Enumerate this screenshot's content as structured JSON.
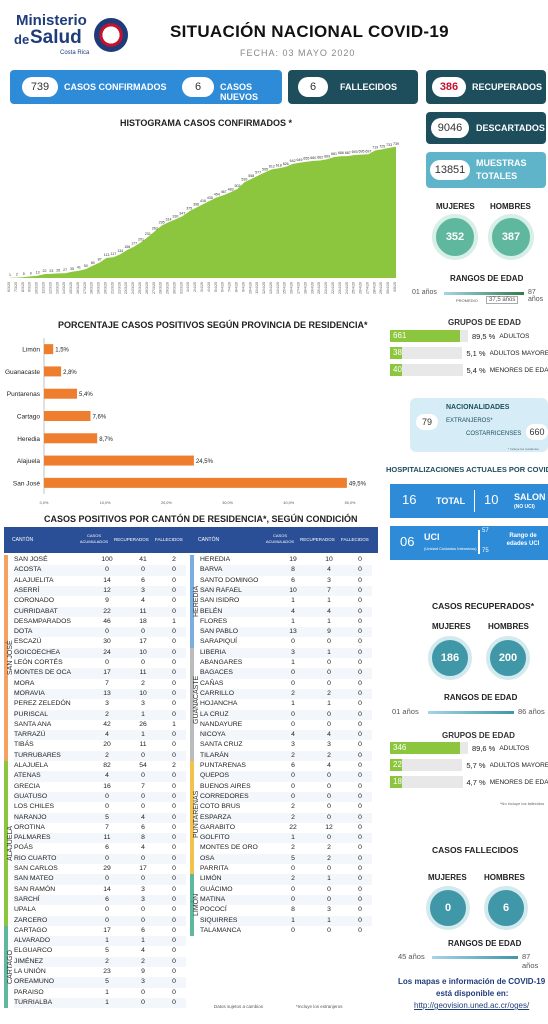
{
  "header": {
    "org_line1": "Ministerio",
    "org_line2_a": "de",
    "org_line2_b": "Salud",
    "org_country": "Costa Rica",
    "title": "SITUACIÓN NACIONAL COVID-19",
    "date": "FECHA: 03 MAYO 2020"
  },
  "kpis": {
    "confirmados": {
      "value": "739",
      "label": "CASOS CONFIRMADOS"
    },
    "nuevos": {
      "value": "6",
      "label": "CASOS NUEVOS"
    },
    "fallecidos": {
      "value": "6",
      "label": "FALLECIDOS"
    },
    "recuperados": {
      "value": "386",
      "label": "RECUPERADOS"
    },
    "descartados": {
      "value": "9046",
      "label": "DESCARTADOS"
    },
    "muestras": {
      "value": "13851",
      "label1": "MUESTRAS",
      "label2": "TOTALES"
    }
  },
  "gender_confirmed": {
    "mujeres_label": "MUJERES",
    "hombres_label": "HOMBRES",
    "mujeres": "352",
    "hombres": "387"
  },
  "age_range_confirmed": {
    "title": "RANGOS DE EDAD",
    "min": "01 años",
    "max": "87 años",
    "promedio_label": "PROMEDIO",
    "promedio": "37,5 años"
  },
  "age_groups_confirmed": {
    "title": "GRUPOS DE EDAD",
    "rows": [
      {
        "n": "661",
        "pct": "89,5 %",
        "label": "ADULTOS",
        "frac": 0.895
      },
      {
        "n": "38",
        "pct": "5,1 %",
        "label": "ADULTOS MAYORES",
        "frac": 0.051
      },
      {
        "n": "40",
        "pct": "5,4 %",
        "label": "MENORES DE EDAD",
        "frac": 0.054
      }
    ]
  },
  "nationality": {
    "title": "NACIONALIDADES",
    "extranjeros_label": "EXTRANJEROS*",
    "extranjeros": "79",
    "costarricenses_label": "COSTARRICENSES",
    "costarricenses": "660",
    "note": "* Incluye los residentes"
  },
  "hosp": {
    "title": "HOSPITALIZACIONES ACTUALES POR COVID-19",
    "total": "16",
    "total_label": "TOTAL",
    "salon": "10",
    "salon_label": "SALON",
    "salon_sub": "(NO UCI)",
    "uci": "06",
    "uci_label": "UCI",
    "uci_sub": "(Unidad Cuidados Intensivos)",
    "uci_range_label": "Rango de edades UCI",
    "uci_max": "57",
    "uci_min": "75"
  },
  "recovered": {
    "title": "CASOS RECUPERADOS*",
    "mujeres_label": "MUJERES",
    "hombres_label": "HOMBRES",
    "mujeres": "186",
    "hombres": "200",
    "range_title": "RANGOS DE EDAD",
    "min": "01 años",
    "max": "86 años",
    "groups_title": "GRUPOS DE EDAD",
    "rows": [
      {
        "n": "346",
        "pct": "89,6 %",
        "label": "ADULTOS",
        "frac": 0.896
      },
      {
        "n": "22",
        "pct": "5,7 %",
        "label": "ADULTOS MAYORES",
        "frac": 0.057
      },
      {
        "n": "18",
        "pct": "4,7 %",
        "label": "MENORES DE EDAD",
        "frac": 0.047
      }
    ],
    "note": "*No incluye los fallecidos"
  },
  "deaths": {
    "title": "CASOS FALLECIDOS",
    "mujeres_label": "MUJERES",
    "hombres_label": "HOMBRES",
    "mujeres": "0",
    "hombres": "6",
    "range_title": "RANGOS DE EDAD",
    "min": "45 años",
    "max": "87 años"
  },
  "footer": {
    "link_text1": "Los mapas e información de COVID-19",
    "link_text2": "está disponible en:",
    "url": "http://geovision.uned.ac.cr/oges/",
    "note1": "Datos sujetos a cambios",
    "note2": "*Incluye los extranjeros"
  },
  "canton_table": {
    "title": "CASOS POSITIVOS POR CANTÓN DE RESIDENCIA*, SEGÚN CONDICIÓN",
    "headers": [
      "CANTÓN",
      "CASOS ACUMULADOS",
      "RECUPERADOS",
      "FALLECIDOS"
    ],
    "provinces_left": [
      "SAN JOSÉ",
      "ALAJUELA",
      "CARTAGO"
    ],
    "provinces_right": [
      "HEREDIA",
      "GUANACASTE",
      "PUNTARENAS",
      "LIMÓN"
    ],
    "left": [
      [
        "SAN JOSÉ",
        "100",
        "41",
        "2"
      ],
      [
        "ACOSTA",
        "0",
        "0",
        "0"
      ],
      [
        "ALAJUELITA",
        "14",
        "6",
        "0"
      ],
      [
        "ASERRÍ",
        "12",
        "3",
        "0"
      ],
      [
        "CORONADO",
        "9",
        "4",
        "0"
      ],
      [
        "CURRIDABAT",
        "22",
        "11",
        "0"
      ],
      [
        "DESAMPARADOS",
        "46",
        "18",
        "1"
      ],
      [
        "DOTA",
        "0",
        "0",
        "0"
      ],
      [
        "ESCAZÚ",
        "30",
        "17",
        "0"
      ],
      [
        "GOICOECHEA",
        "24",
        "10",
        "0"
      ],
      [
        "LEÓN CORTÉS",
        "0",
        "0",
        "0"
      ],
      [
        "MONTES DE OCA",
        "17",
        "11",
        "0"
      ],
      [
        "MORA",
        "7",
        "2",
        "0"
      ],
      [
        "MORAVIA",
        "13",
        "10",
        "0"
      ],
      [
        "PEREZ ZELEDÓN",
        "3",
        "3",
        "0"
      ],
      [
        "PURISCAL",
        "2",
        "1",
        "0"
      ],
      [
        "SANTA ANA",
        "42",
        "26",
        "1"
      ],
      [
        "TARRAZÚ",
        "4",
        "1",
        "0"
      ],
      [
        "TIBÁS",
        "20",
        "11",
        "0"
      ],
      [
        "TURRUBARES",
        "2",
        "0",
        "0"
      ],
      [
        "ALAJUELA",
        "82",
        "54",
        "2"
      ],
      [
        "ATENAS",
        "4",
        "0",
        "0"
      ],
      [
        "GRECIA",
        "16",
        "7",
        "0"
      ],
      [
        "GUATUSO",
        "0",
        "0",
        "0"
      ],
      [
        "LOS CHILES",
        "0",
        "0",
        "0"
      ],
      [
        "NARANJO",
        "5",
        "4",
        "0"
      ],
      [
        "OROTINA",
        "7",
        "6",
        "0"
      ],
      [
        "PALMARES",
        "11",
        "8",
        "0"
      ],
      [
        "POÁS",
        "6",
        "4",
        "0"
      ],
      [
        "RIO CUARTO",
        "0",
        "0",
        "0"
      ],
      [
        "SAN CARLOS",
        "29",
        "17",
        "0"
      ],
      [
        "SAN MATEO",
        "0",
        "0",
        "0"
      ],
      [
        "SAN RAMÓN",
        "14",
        "3",
        "0"
      ],
      [
        "SARCHÍ",
        "6",
        "3",
        "0"
      ],
      [
        "UPALA",
        "0",
        "0",
        "0"
      ],
      [
        "ZARCERO",
        "0",
        "0",
        "0"
      ],
      [
        "CARTAGO",
        "17",
        "6",
        "0"
      ],
      [
        "ALVARADO",
        "1",
        "1",
        "0"
      ],
      [
        "ELGUARCO",
        "5",
        "4",
        "0"
      ],
      [
        "JIMÉNEZ",
        "2",
        "2",
        "0"
      ],
      [
        "LA UNIÓN",
        "23",
        "9",
        "0"
      ],
      [
        "OREAMUNO",
        "5",
        "3",
        "0"
      ],
      [
        "PARAISO",
        "1",
        "0",
        "0"
      ],
      [
        "TURRIALBA",
        "1",
        "0",
        "0"
      ]
    ],
    "right": [
      [
        "HEREDIA",
        "19",
        "10",
        "0"
      ],
      [
        "BARVA",
        "8",
        "4",
        "0"
      ],
      [
        "SANTO DOMINGO",
        "6",
        "3",
        "0"
      ],
      [
        "SAN RAFAEL",
        "10",
        "7",
        "0"
      ],
      [
        "SAN ISIDRO",
        "1",
        "1",
        "0"
      ],
      [
        "BELÉN",
        "4",
        "4",
        "0"
      ],
      [
        "FLORES",
        "1",
        "1",
        "0"
      ],
      [
        "SAN PABLO",
        "13",
        "9",
        "0"
      ],
      [
        "SARAPIQUÍ",
        "0",
        "0",
        "0"
      ],
      [
        "LIBERIA",
        "3",
        "1",
        "0"
      ],
      [
        "ABANGARES",
        "1",
        "0",
        "0"
      ],
      [
        "BAGACES",
        "0",
        "0",
        "0"
      ],
      [
        "CAÑAS",
        "0",
        "0",
        "0"
      ],
      [
        "CARRILLO",
        "2",
        "2",
        "0"
      ],
      [
        "HOJANCHA",
        "1",
        "1",
        "0"
      ],
      [
        "LA CRUZ",
        "0",
        "0",
        "0"
      ],
      [
        "NANDAYURE",
        "0",
        "0",
        "0"
      ],
      [
        "NICOYA",
        "4",
        "4",
        "0"
      ],
      [
        "SANTA CRUZ",
        "3",
        "3",
        "0"
      ],
      [
        "TILARÁN",
        "2",
        "2",
        "0"
      ],
      [
        "PUNTARENAS",
        "6",
        "4",
        "0"
      ],
      [
        "QUEPOS",
        "0",
        "0",
        "0"
      ],
      [
        "BUENOS AIRES",
        "0",
        "0",
        "0"
      ],
      [
        "CORREDORES",
        "0",
        "0",
        "0"
      ],
      [
        "COTO BRUS",
        "2",
        "0",
        "0"
      ],
      [
        "ESPARZA",
        "2",
        "0",
        "0"
      ],
      [
        "GARABITO",
        "22",
        "12",
        "0"
      ],
      [
        "GOLFITO",
        "1",
        "0",
        "0"
      ],
      [
        "MONTES DE ORO",
        "2",
        "2",
        "0"
      ],
      [
        "OSA",
        "5",
        "2",
        "0"
      ],
      [
        "PARRITA",
        "0",
        "0",
        "0"
      ],
      [
        "LIMÓN",
        "2",
        "1",
        "0"
      ],
      [
        "GUÁCIMO",
        "0",
        "0",
        "0"
      ],
      [
        "MATINA",
        "0",
        "0",
        "0"
      ],
      [
        "POCOCÍ",
        "8",
        "3",
        "0"
      ],
      [
        "SIQUIRRES",
        "1",
        "1",
        "0"
      ],
      [
        "TALAMANCA",
        "0",
        "0",
        "0"
      ]
    ]
  },
  "chart_data": [
    {
      "type": "area",
      "title": "HISTOGRAMA CASOS CONFIRMADOS *",
      "y_values": [
        1,
        2,
        5,
        9,
        13,
        22,
        23,
        26,
        27,
        35,
        41,
        50,
        69,
        87,
        113,
        117,
        134,
        158,
        177,
        201,
        231,
        263,
        295,
        314,
        330,
        347,
        375,
        396,
        416,
        435,
        454,
        467,
        483,
        502,
        539,
        558,
        577,
        595,
        612,
        618,
        626,
        642,
        649,
        655,
        660,
        662,
        669,
        681,
        686,
        687,
        693,
        695,
        697,
        719,
        725,
        733,
        739
      ],
      "x_tick_labels": [
        "6/3/20",
        "7/3/20",
        "8/3/20",
        "9/3/20",
        "10/3/20",
        "11/3/20",
        "12/3/20",
        "13/3/20",
        "14/3/20",
        "15/3/20",
        "16/3/20",
        "17/3/20",
        "18/3/20",
        "19/3/20",
        "20/3/20",
        "21/3/20",
        "22/3/20",
        "23/3/20",
        "24/3/20",
        "25/3/20",
        "26/3/20",
        "27/3/20",
        "28/3/20",
        "29/3/20",
        "30/3/20",
        "31/3/20",
        "1/4/20",
        "2/4/20",
        "3/4/20",
        "4/4/20",
        "5/4/20",
        "6/4/20",
        "7/4/20",
        "8/4/20",
        "9/4/20",
        "10/4/20",
        "11/4/20",
        "12/4/20",
        "13/4/20",
        "14/4/20",
        "15/4/20",
        "16/4/20",
        "17/4/20",
        "18/4/20",
        "19/4/20",
        "20/4/20",
        "21/4/20",
        "22/4/20",
        "23/4/20",
        "24/4/20",
        "25/4/20",
        "26/4/20",
        "27/4/20",
        "28/4/20",
        "29/4/20",
        "30/4/20",
        "3/5/20"
      ],
      "ylim": [
        0,
        800
      ]
    },
    {
      "type": "bar",
      "orientation": "horizontal",
      "title": "PORCENTAJE CASOS POSITIVOS SEGÚN PROVINCIA DE RESIDENCIA*",
      "categories": [
        "Limón",
        "Guanacaste",
        "Puntarenas",
        "Cartago",
        "Heredia",
        "Alajuela",
        "San José"
      ],
      "values": [
        1.5,
        2.8,
        5.4,
        7.6,
        8.7,
        24.5,
        49.5
      ],
      "value_labels": [
        "1,5%",
        "2,8%",
        "5,4%",
        "7,6%",
        "8,7%",
        "24,5%",
        "49,5%"
      ],
      "x_tick_labels": [
        "0,0%",
        "10,0%",
        "20,0%",
        "30,0%",
        "40,0%",
        "50,0%"
      ],
      "xlim": [
        0,
        50
      ]
    }
  ]
}
